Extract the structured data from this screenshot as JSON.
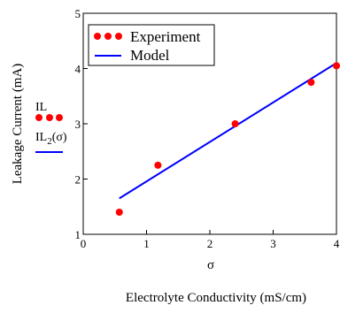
{
  "chart_data": {
    "type": "scatter",
    "x_range": [
      0,
      4
    ],
    "y_range": [
      1,
      5
    ],
    "x_ticks": [
      "0",
      "1",
      "2",
      "3",
      "4"
    ],
    "y_ticks": [
      "1",
      "2",
      "3",
      "4",
      "5"
    ],
    "grid": false,
    "legend_position": "top-left",
    "ylabel": "Leakage Current (mA)",
    "xlabel": "Electrolyte Conductivity (mS/cm)",
    "axis_variable": "σ",
    "side_labels": {
      "experiment_var": "IL",
      "model_var_base": "IL",
      "model_var_sub": "2",
      "model_var_arg": "(σ)"
    },
    "series": [
      {
        "name": "Experiment",
        "kind": "points",
        "color": "#ff0000",
        "x": [
          0.57,
          1.18,
          2.4,
          3.6,
          4.0
        ],
        "y": [
          1.4,
          2.25,
          3.0,
          3.75,
          4.05
        ]
      },
      {
        "name": "Model",
        "kind": "line",
        "color": "#0000ff",
        "x": [
          0.57,
          4.0
        ],
        "y": [
          1.65,
          4.1
        ]
      }
    ]
  }
}
